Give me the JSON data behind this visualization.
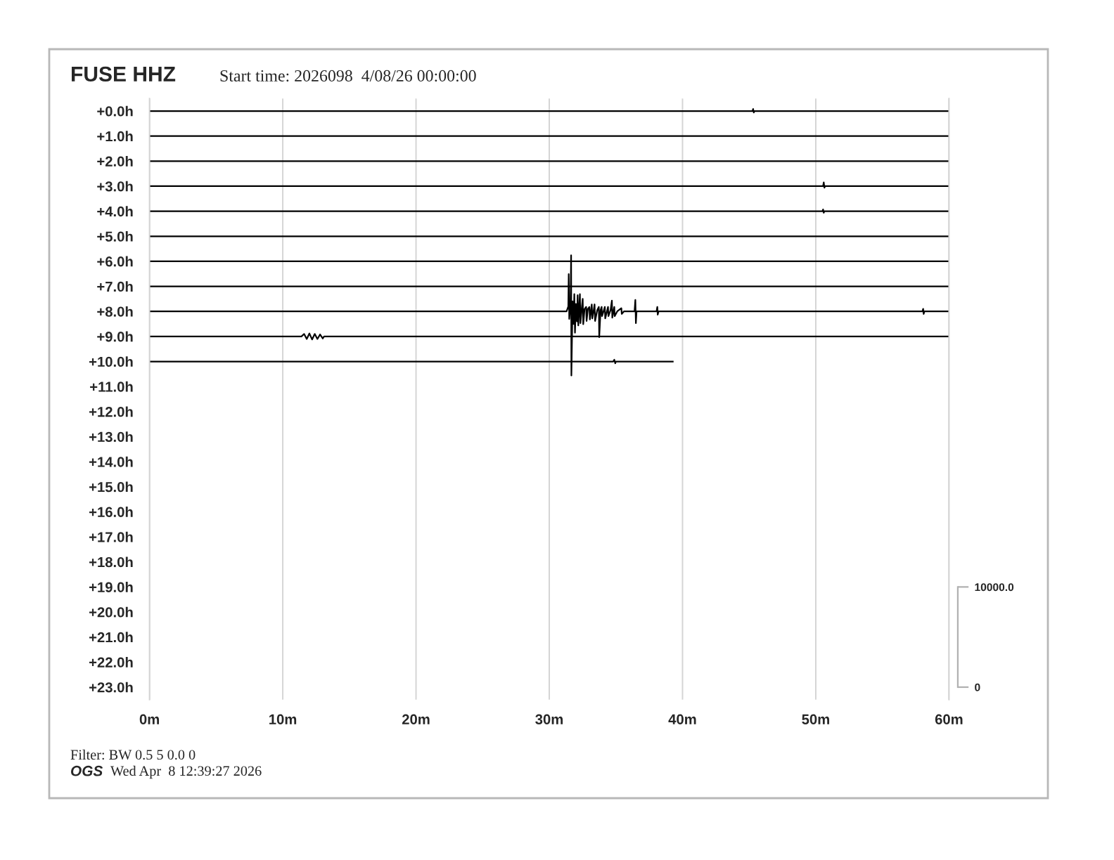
{
  "chart_data": {
    "type": "line",
    "title": "FUSE HHZ",
    "subtitle": "Start time: 2026098  4/08/26 00:00:00",
    "xlim": [
      0,
      60
    ],
    "xticks": [
      {
        "value": 0,
        "label": "0m"
      },
      {
        "value": 10,
        "label": "10m"
      },
      {
        "value": 20,
        "label": "20m"
      },
      {
        "value": 30,
        "label": "30m"
      },
      {
        "value": 40,
        "label": "40m"
      },
      {
        "value": 50,
        "label": "50m"
      },
      {
        "value": 60,
        "label": "60m"
      }
    ],
    "ylim": [
      23.5,
      -0.5
    ],
    "yticks": [
      {
        "value": 0,
        "label": "+0.0h"
      },
      {
        "value": 1,
        "label": "+1.0h"
      },
      {
        "value": 2,
        "label": "+2.0h"
      },
      {
        "value": 3,
        "label": "+3.0h"
      },
      {
        "value": 4,
        "label": "+4.0h"
      },
      {
        "value": 5,
        "label": "+5.0h"
      },
      {
        "value": 6,
        "label": "+6.0h"
      },
      {
        "value": 7,
        "label": "+7.0h"
      },
      {
        "value": 8,
        "label": "+8.0h"
      },
      {
        "value": 9,
        "label": "+9.0h"
      },
      {
        "value": 10,
        "label": "+10.0h"
      },
      {
        "value": 11,
        "label": "+11.0h"
      },
      {
        "value": 12,
        "label": "+12.0h"
      },
      {
        "value": 13,
        "label": "+13.0h"
      },
      {
        "value": 14,
        "label": "+14.0h"
      },
      {
        "value": 15,
        "label": "+15.0h"
      },
      {
        "value": 16,
        "label": "+16.0h"
      },
      {
        "value": 17,
        "label": "+17.0h"
      },
      {
        "value": 18,
        "label": "+18.0h"
      },
      {
        "value": 19,
        "label": "+19.0h"
      },
      {
        "value": 20,
        "label": "+20.0h"
      },
      {
        "value": 21,
        "label": "+21.0h"
      },
      {
        "value": 22,
        "label": "+22.0h"
      },
      {
        "value": 23,
        "label": "+23.0h"
      }
    ],
    "y2lim": [
      -1250,
      58750
    ],
    "y2ticks": [
      0,
      {
        "value": 10000,
        "label": "10000.0"
      }
    ],
    "grid": "x",
    "line_style": "solid",
    "series": [
      {
        "color": "#000000",
        "x": [
          0,
          45.25,
          45.3,
          45.35,
          45.4,
          60
        ],
        "values": [
          0,
          0,
          -0.08,
          0.06,
          0,
          0
        ]
      },
      {
        "color": "#000000",
        "x": [
          0,
          60
        ],
        "values": [
          1,
          1
        ]
      },
      {
        "color": "#000000",
        "x": [
          0,
          60
        ],
        "values": [
          2,
          2
        ]
      },
      {
        "color": "#000000",
        "x": [
          0,
          50.55,
          50.6,
          50.65,
          50.7,
          60
        ],
        "values": [
          3,
          3,
          2.85,
          3.06,
          3,
          3
        ]
      },
      {
        "color": "#000000",
        "x": [
          0,
          50.5,
          50.55,
          50.6,
          50.65,
          60
        ],
        "values": [
          4,
          4,
          3.93,
          4.06,
          4,
          4
        ]
      },
      {
        "color": "#000000",
        "x": [
          0,
          60
        ],
        "values": [
          5,
          5
        ]
      },
      {
        "color": "#000000",
        "x": [
          0,
          60
        ],
        "values": [
          6,
          6
        ]
      },
      {
        "color": "#000000",
        "x": [
          0,
          60
        ],
        "values": [
          7,
          7
        ]
      },
      {
        "color": "#000000",
        "x": [
          0,
          31.3,
          31.43,
          31.46,
          31.5,
          31.6,
          31.64,
          31.66,
          31.75,
          31.82,
          31.88,
          31.93,
          32.0,
          32.08,
          32.13,
          32.18,
          32.25,
          32.3,
          32.34,
          32.45,
          32.51,
          32.55,
          32.65,
          32.77,
          32.8,
          32.9,
          33.01,
          33.05,
          33.15,
          33.19,
          33.23,
          33.35,
          33.4,
          33.44,
          33.6,
          33.72,
          33.75,
          33.85,
          33.93,
          33.96,
          34.1,
          34.17,
          34.2,
          34.35,
          34.41,
          34.44,
          34.6,
          34.7,
          34.73,
          34.85,
          34.88,
          34.91,
          35.1,
          35.41,
          35.44,
          35.6,
          36.4,
          36.46,
          36.5,
          36.55,
          38.05,
          38.11,
          38.14,
          38.2,
          58.0,
          58.06,
          58.1,
          58.15,
          60
        ],
        "values": [
          8,
          8,
          7.8,
          6.51,
          8.3,
          7.7,
          5.76,
          10.56,
          7.6,
          8.5,
          7.31,
          8.85,
          7.7,
          8.4,
          7.35,
          8.56,
          7.8,
          7.31,
          8.47,
          7.8,
          7.5,
          8.51,
          7.9,
          7.82,
          8.38,
          7.9,
          7.82,
          8.32,
          7.9,
          7.72,
          8.28,
          7.9,
          7.72,
          8.38,
          7.95,
          7.82,
          9.03,
          7.95,
          7.82,
          8.19,
          7.95,
          7.82,
          8.28,
          7.95,
          7.82,
          8.19,
          7.95,
          7.57,
          8.25,
          7.9,
          7.82,
          8.19,
          8,
          7.87,
          8.1,
          8,
          8,
          7.54,
          8.47,
          8,
          8,
          7.82,
          8.13,
          8,
          8,
          7.9,
          8.1,
          8,
          8
        ]
      },
      {
        "color": "#000000",
        "x": [
          0,
          11.4,
          11.6,
          11.8,
          12.0,
          12.2,
          12.4,
          12.6,
          12.8,
          13.0,
          13.1,
          60
        ],
        "values": [
          9,
          9,
          8.9,
          9.1,
          8.88,
          9.12,
          8.9,
          9.1,
          8.92,
          9.08,
          9,
          9
        ]
      },
      {
        "color": "#000000",
        "x": [
          0,
          34.8,
          34.88,
          34.95,
          35.0,
          39.33
        ],
        "values": [
          10,
          10,
          9.93,
          10.07,
          10,
          10
        ]
      }
    ],
    "annotations": [
      "Filter: BW 0.5 5 0.0 0",
      "OGS",
      "Wed Apr  8 12:39:27 2026"
    ]
  }
}
